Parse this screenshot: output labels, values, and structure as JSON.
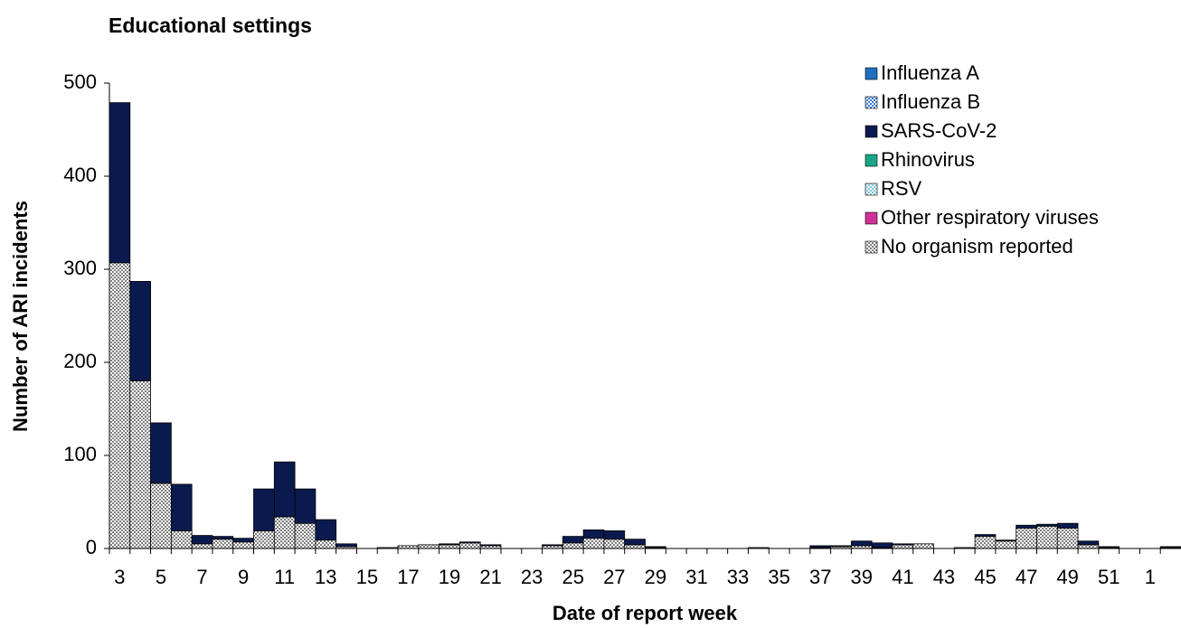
{
  "chart_data": {
    "type": "stacked_bar",
    "title": "Educational settings",
    "xlabel": "Date of report week",
    "ylabel": "Number of ARI incidents",
    "categories": [
      "3",
      null,
      "5",
      null,
      "7",
      null,
      "9",
      null,
      "11",
      null,
      "13",
      null,
      "15",
      null,
      "17",
      null,
      "19",
      null,
      "21",
      null,
      "23",
      null,
      "25",
      null,
      "27",
      null,
      "29",
      null,
      "31",
      null,
      "33",
      null,
      "35",
      null,
      "37",
      null,
      "39",
      null,
      "41",
      null,
      "43",
      null,
      "45",
      null,
      "47",
      null,
      "49",
      null,
      "51",
      null,
      "1",
      null
    ],
    "series": [
      {
        "name": "Influenza A",
        "color": "#1f6fbf",
        "values": [
          0,
          0,
          0,
          0,
          0,
          0,
          0,
          0,
          0,
          0,
          0,
          0,
          0,
          0,
          0,
          0,
          0,
          0,
          0,
          0,
          0,
          0,
          0,
          0,
          0,
          0,
          0,
          0,
          0,
          0,
          0,
          0,
          0,
          0,
          0,
          0,
          0,
          0,
          0,
          0,
          0,
          0,
          0,
          0,
          0,
          0,
          0,
          0,
          0,
          0,
          0,
          0
        ]
      },
      {
        "name": "Influenza B",
        "color": "#3a78c8",
        "hatched": true,
        "values": [
          0,
          0,
          0,
          0,
          0,
          0,
          0,
          0,
          0,
          0,
          0,
          0,
          0,
          0,
          0,
          0,
          0,
          0,
          0,
          0,
          0,
          0,
          0,
          0,
          0,
          0,
          0,
          0,
          0,
          0,
          0,
          0,
          0,
          0,
          0,
          0,
          0,
          0,
          0,
          0,
          0,
          0,
          0,
          0,
          0,
          0,
          0,
          0,
          0,
          0,
          0,
          0
        ]
      },
      {
        "name": "SARS-CoV-2",
        "color": "#0b1a4e",
        "values": [
          172,
          107,
          65,
          50,
          9,
          3,
          4,
          45,
          59,
          37,
          22,
          3,
          0,
          0,
          0,
          0,
          1,
          1,
          1,
          0,
          0,
          1,
          7,
          9,
          9,
          6,
          1,
          0,
          0,
          0,
          0,
          0,
          0,
          0,
          2,
          1,
          5,
          5,
          1,
          0,
          0,
          0,
          2,
          1,
          3,
          2,
          5,
          4,
          1,
          0,
          0,
          1
        ]
      },
      {
        "name": "Rhinovirus",
        "color": "#1aa584",
        "values": [
          0,
          0,
          0,
          0,
          0,
          0,
          0,
          0,
          0,
          0,
          0,
          0,
          0,
          0,
          0,
          0,
          0,
          0,
          0,
          0,
          0,
          0,
          0,
          0,
          0,
          0,
          0,
          0,
          0,
          0,
          0,
          0,
          0,
          0,
          0,
          0,
          0,
          0,
          0,
          0,
          0,
          0,
          0,
          0,
          0,
          0,
          0,
          0,
          0,
          0,
          0,
          0
        ]
      },
      {
        "name": "RSV",
        "color": "#7fc6d8",
        "hatched": true,
        "values": [
          0,
          0,
          0,
          0,
          0,
          0,
          0,
          0,
          0,
          0,
          0,
          0,
          0,
          0,
          0,
          0,
          0,
          0,
          0,
          0,
          0,
          0,
          0,
          0,
          0,
          0,
          0,
          0,
          0,
          0,
          0,
          0,
          0,
          0,
          0,
          0,
          0,
          0,
          0,
          0,
          0,
          0,
          0,
          0,
          0,
          0,
          0,
          0,
          0,
          0,
          0,
          0
        ]
      },
      {
        "name": "Other respiratory viruses",
        "color": "#d0309a",
        "values": [
          0,
          0,
          0,
          0,
          0,
          0,
          0,
          0,
          0,
          0,
          0,
          0,
          0,
          0,
          0,
          0,
          0,
          0,
          0,
          0,
          0,
          0,
          0,
          0,
          0,
          0,
          0,
          0,
          0,
          0,
          0,
          0,
          0,
          0,
          0,
          0,
          0,
          0,
          0,
          0,
          0,
          0,
          0,
          0,
          0,
          0,
          0,
          0,
          0,
          0,
          0,
          0
        ]
      },
      {
        "name": "No organism reported",
        "color": "#808080",
        "hatched": true,
        "values": [
          307,
          180,
          70,
          19,
          5,
          10,
          7,
          19,
          34,
          27,
          9,
          2,
          0,
          1,
          3,
          4,
          4,
          6,
          3,
          0,
          0,
          3,
          6,
          11,
          10,
          4,
          1,
          0,
          0,
          0,
          0,
          1,
          0,
          0,
          1,
          2,
          3,
          1,
          4,
          5,
          0,
          1,
          13,
          8,
          22,
          24,
          22,
          4,
          1,
          0,
          0,
          1
        ]
      }
    ],
    "ylim": [
      0,
      500
    ],
    "yticks": [
      0,
      100,
      200,
      300,
      400,
      500
    ],
    "grid": false,
    "legend": "upper right"
  }
}
